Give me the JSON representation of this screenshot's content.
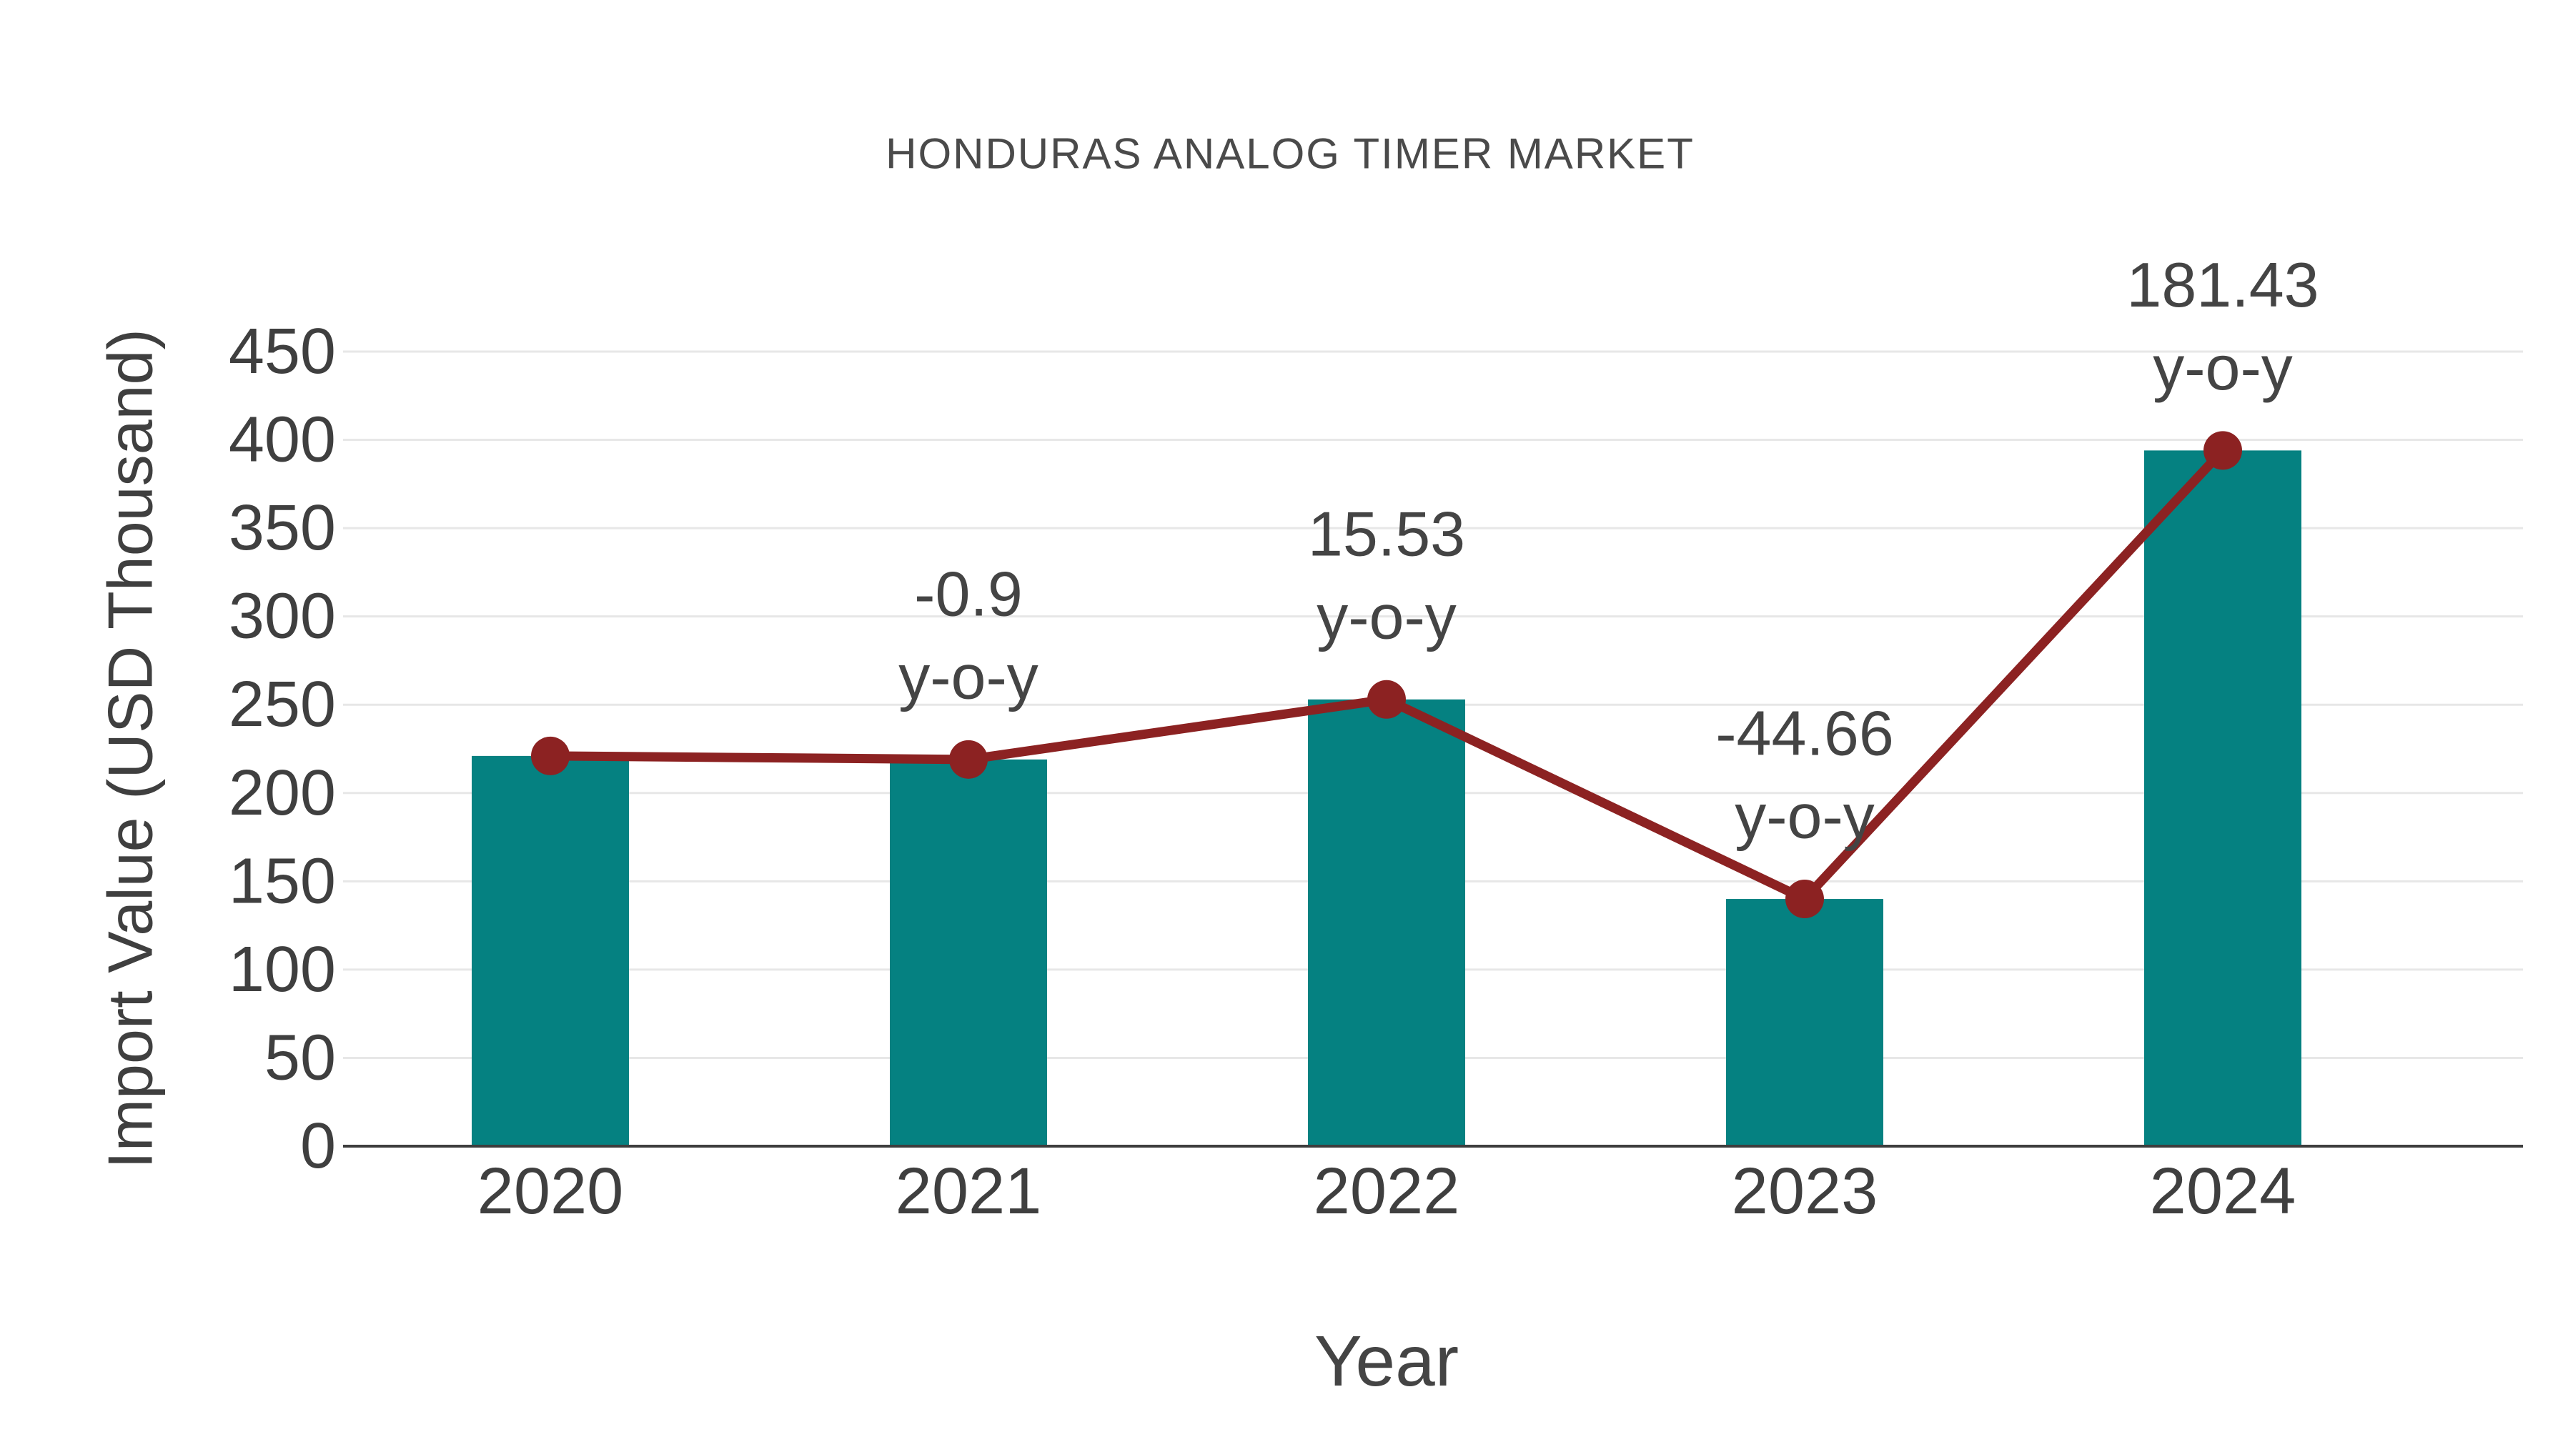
{
  "page": {
    "background": "#ffffff"
  },
  "chart_data": {
    "type": "bar",
    "title": "HONDURAS ANALOG TIMER MARKET",
    "xlabel": "Year",
    "ylabel": "Import Value (USD Thousand)",
    "categories": [
      "2020",
      "2021",
      "2022",
      "2023",
      "2024"
    ],
    "series": [
      {
        "name": "import-value-bars",
        "type": "bar",
        "color": "#058181",
        "values": [
          221,
          219,
          253,
          140,
          394
        ]
      },
      {
        "name": "import-value-trend",
        "type": "line",
        "color": "#8c2222",
        "values": [
          221,
          219,
          253,
          140,
          394
        ]
      }
    ],
    "annotations": [
      {
        "category": "2021",
        "value_label": "-0.9",
        "suffix": "y-o-y"
      },
      {
        "category": "2022",
        "value_label": "15.53",
        "suffix": "y-o-y"
      },
      {
        "category": "2023",
        "value_label": "-44.66",
        "suffix": "y-o-y"
      },
      {
        "category": "2024",
        "value_label": "181.43",
        "suffix": "y-o-y"
      }
    ],
    "ylim": [
      0,
      450
    ],
    "ytick_step": 50,
    "yticks": [
      0,
      50,
      100,
      150,
      200,
      250,
      300,
      350,
      400,
      450
    ],
    "grid": true,
    "legend": false,
    "colors": {
      "bar": "#058181",
      "line": "#8c2222",
      "gridline": "#e7e7e7",
      "axis_line": "#3d3d3d",
      "text": "#444444"
    }
  }
}
